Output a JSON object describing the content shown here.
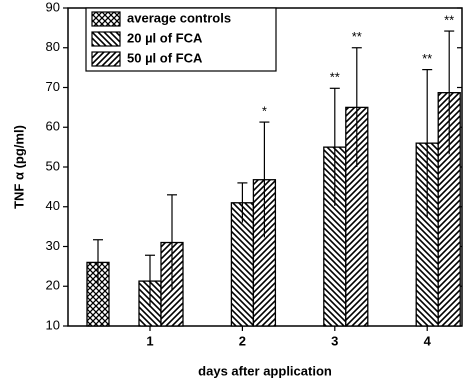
{
  "chart_data": {
    "type": "bar",
    "ylabel": "TNF α (pg/ml)",
    "xlabel": "days after application",
    "categories": [
      null,
      "1",
      "2",
      "3",
      "4"
    ],
    "series": [
      {
        "name": "average controls",
        "pattern": "crosshatch",
        "values": [
          26,
          null,
          null,
          null,
          null
        ],
        "errors": [
          5.7,
          null,
          null,
          null,
          null
        ],
        "labels": [
          null,
          null,
          null,
          null,
          null
        ]
      },
      {
        "name": "20 µl of FCA",
        "pattern": "backslash",
        "values": [
          null,
          21.3,
          41,
          55,
          56
        ],
        "errors": [
          null,
          6.5,
          5,
          14.8,
          18.5
        ],
        "labels": [
          null,
          null,
          null,
          "**",
          "**"
        ]
      },
      {
        "name": "50 µl of FCA",
        "pattern": "slash",
        "values": [
          null,
          31,
          46.8,
          65,
          68.7
        ],
        "errors": [
          null,
          12,
          14.5,
          15,
          15.5
        ],
        "labels": [
          null,
          null,
          "*",
          "**",
          "**"
        ]
      }
    ],
    "ylim": [
      10,
      90
    ],
    "yticks": [
      10,
      20,
      30,
      40,
      50,
      60,
      70,
      80,
      90
    ],
    "legend": "upper left"
  }
}
